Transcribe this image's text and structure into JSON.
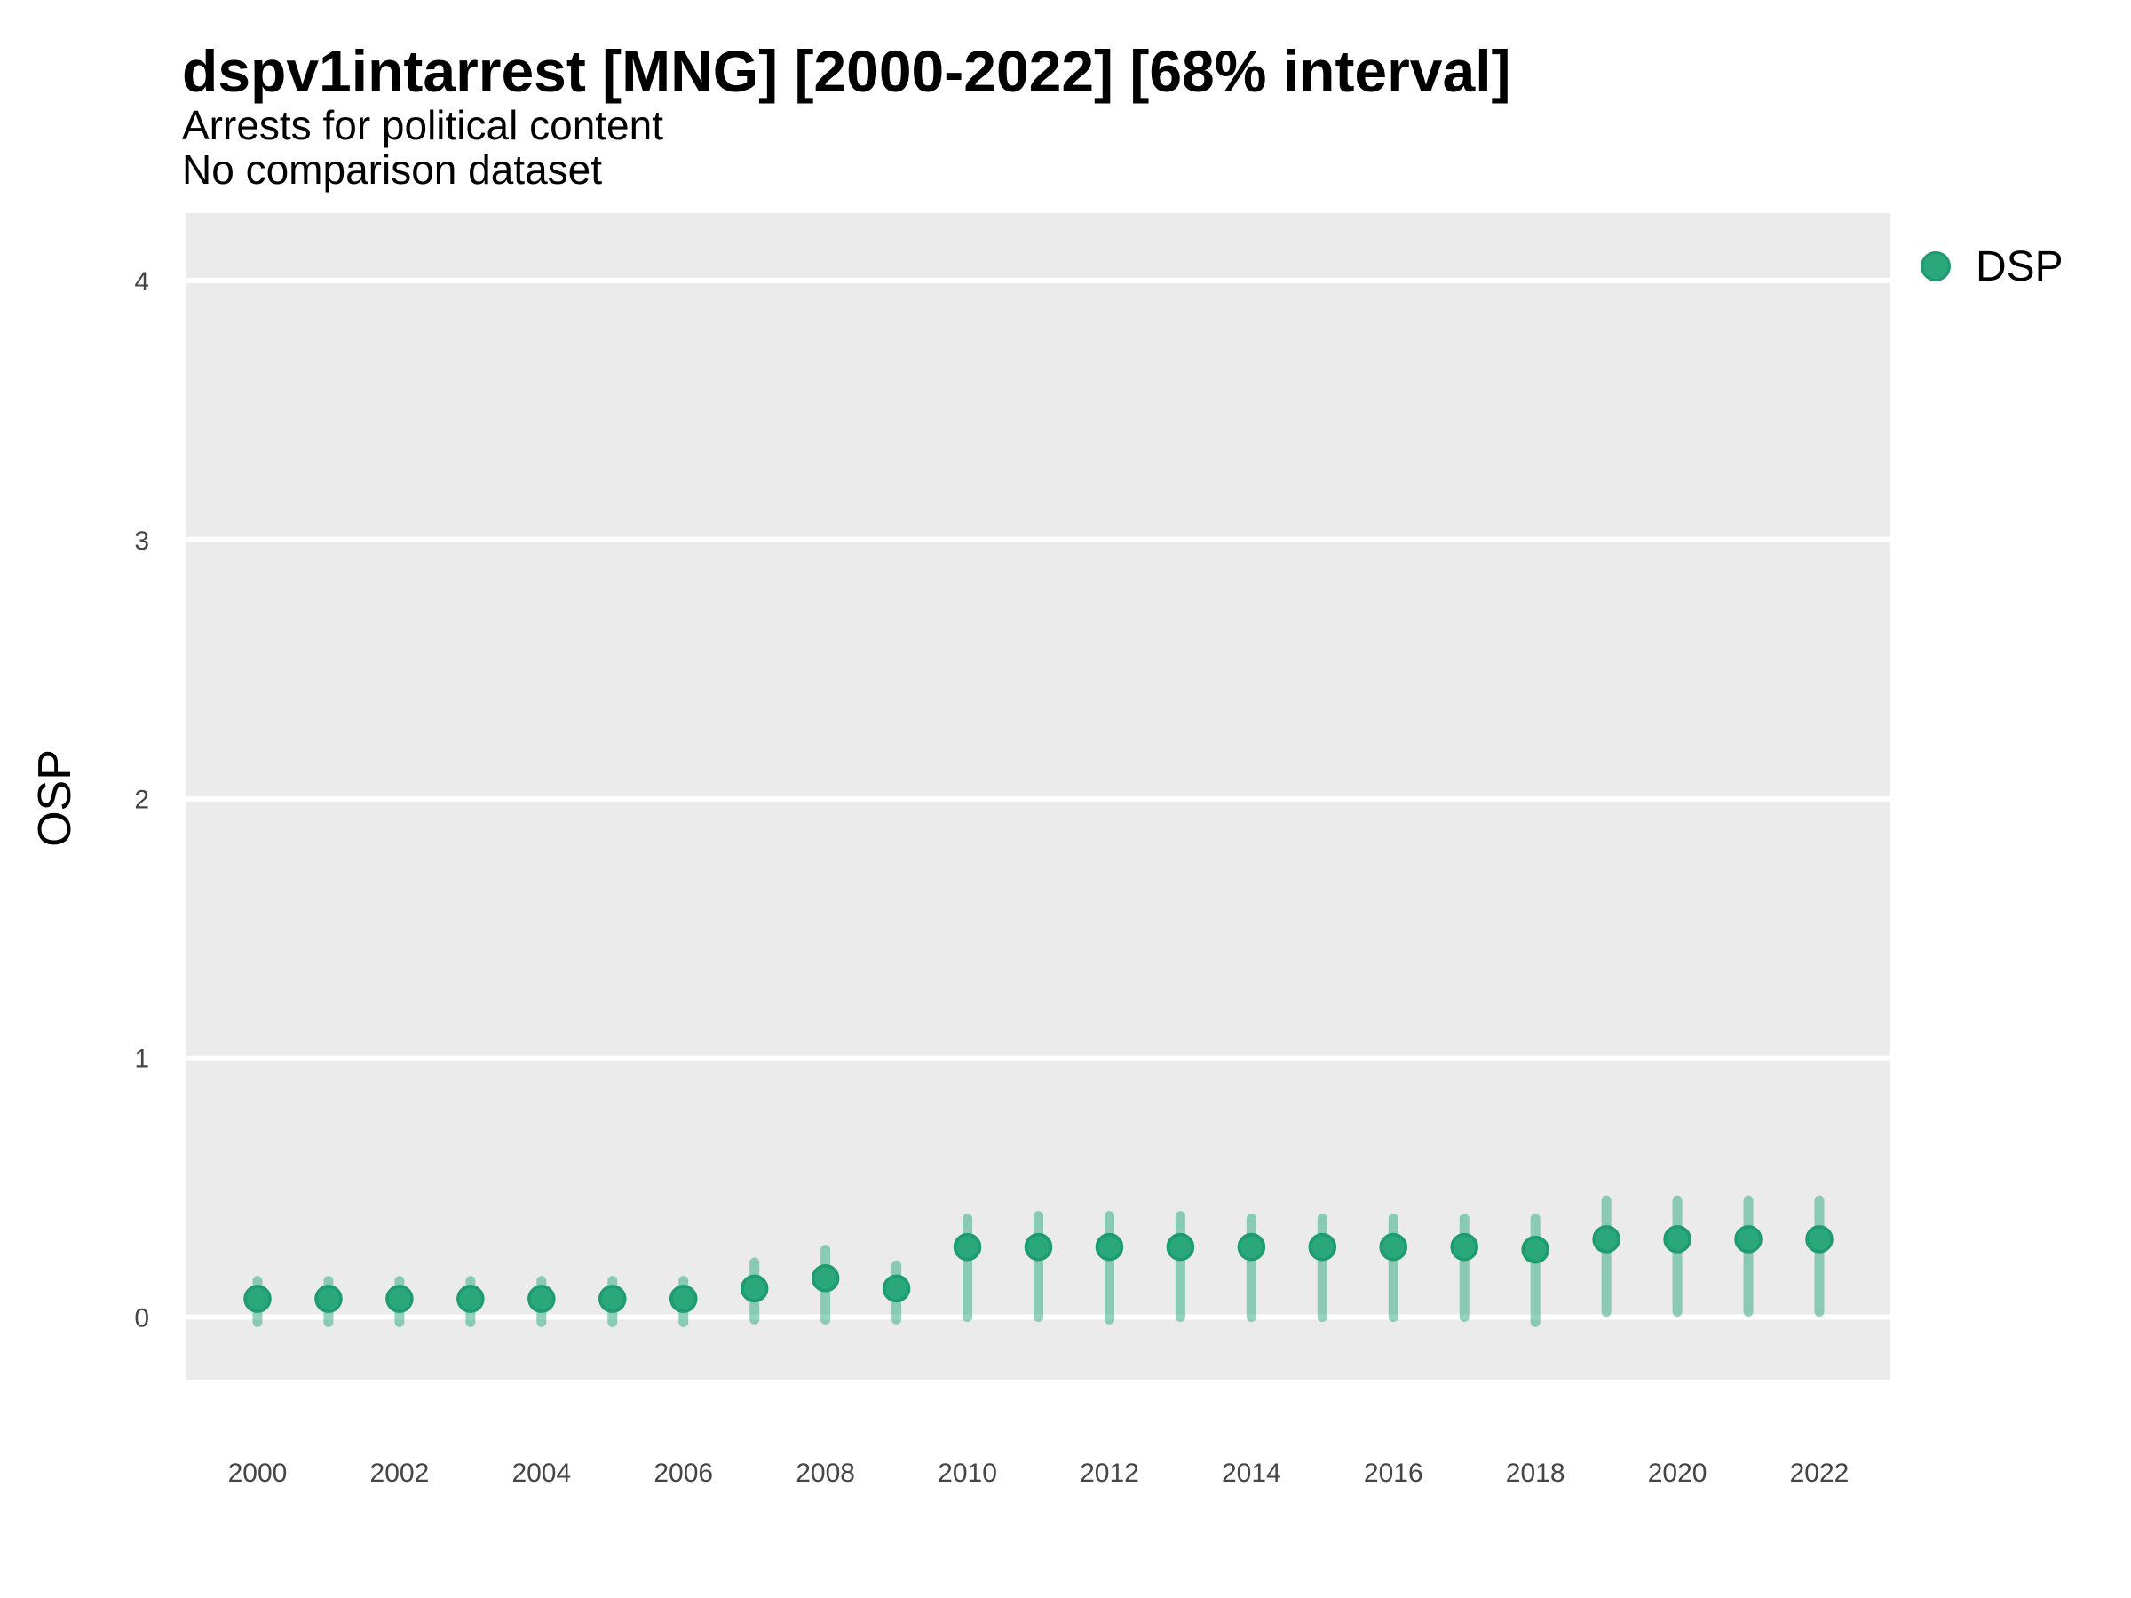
{
  "header": {
    "title": "dspv1intarrest [MNG] [2000-2022] [68% interval]",
    "subtitle_line1": "Arrests for political content",
    "subtitle_line2": "No comparison dataset"
  },
  "y_axis": {
    "title": "OSP"
  },
  "legend": {
    "label": "DSP",
    "marker_color": "#2aa87c",
    "marker_border": "#1e9b70",
    "position": "right-top"
  },
  "chart_data": {
    "type": "scatter",
    "title": "dspv1intarrest [MNG] [2000-2022] [68% interval]",
    "subtitle": [
      "Arrests for political content",
      "No comparison dataset"
    ],
    "xlabel": "",
    "ylabel": "OSP",
    "interval_level": "68%",
    "ylim": [
      -0.245,
      4.26
    ],
    "y_ticks": [
      0,
      1,
      2,
      3,
      4
    ],
    "x_ticks": [
      2000,
      2002,
      2004,
      2006,
      2008,
      2010,
      2012,
      2014,
      2016,
      2018,
      2020,
      2022
    ],
    "grid": "major-horizontal-white-on-gray-panel",
    "legend_position": "right-top",
    "colors": {
      "panel_bg": "#ebebeb",
      "gridline": "#ffffff",
      "point": "#2aa87c",
      "point_border": "#1e9b70",
      "interval": "rgba(42,168,124,0.5)",
      "tick_text": "#454545"
    },
    "series": [
      {
        "name": "DSP",
        "x": [
          2000,
          2001,
          2002,
          2003,
          2004,
          2005,
          2006,
          2007,
          2008,
          2009,
          2010,
          2011,
          2012,
          2013,
          2014,
          2015,
          2016,
          2017,
          2018,
          2019,
          2020,
          2021,
          2022
        ],
        "y": [
          0.07,
          0.07,
          0.07,
          0.07,
          0.07,
          0.07,
          0.07,
          0.11,
          0.15,
          0.11,
          0.27,
          0.27,
          0.27,
          0.27,
          0.27,
          0.27,
          0.27,
          0.27,
          0.26,
          0.3,
          0.3,
          0.3,
          0.3
        ],
        "interval_low": [
          -0.02,
          -0.02,
          -0.02,
          -0.02,
          -0.02,
          -0.02,
          -0.02,
          -0.01,
          -0.01,
          -0.01,
          0.0,
          0.0,
          -0.01,
          0.0,
          0.0,
          0.0,
          0.0,
          0.0,
          -0.02,
          0.02,
          0.02,
          0.02,
          0.02
        ],
        "interval_high": [
          0.14,
          0.14,
          0.14,
          0.14,
          0.14,
          0.14,
          0.14,
          0.21,
          0.26,
          0.2,
          0.38,
          0.39,
          0.39,
          0.39,
          0.38,
          0.38,
          0.38,
          0.38,
          0.38,
          0.45,
          0.45,
          0.45,
          0.45
        ]
      }
    ]
  }
}
